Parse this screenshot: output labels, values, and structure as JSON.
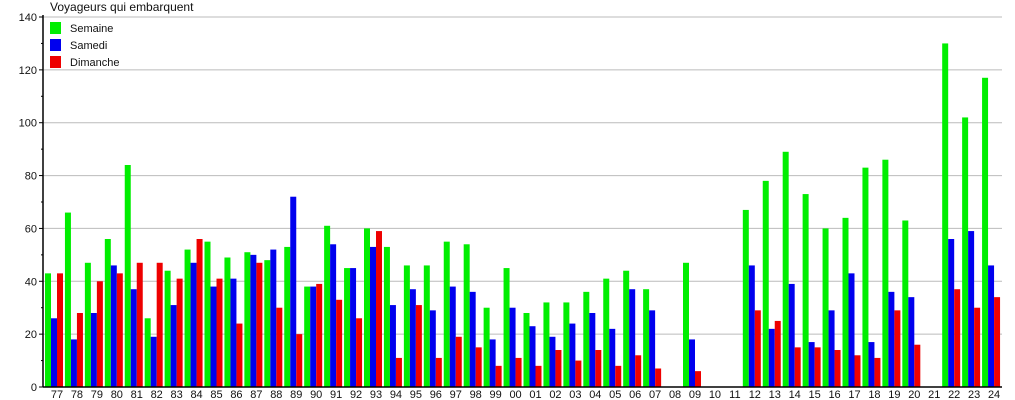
{
  "chart_data": {
    "type": "bar",
    "title": "Voyageurs qui embarquent",
    "xlabel": "",
    "ylabel": "",
    "ylim": [
      0,
      140
    ],
    "yticks": [
      0,
      20,
      40,
      60,
      80,
      100,
      120,
      140
    ],
    "grid": true,
    "legend_position": "top-left",
    "categories": [
      "77",
      "78",
      "79",
      "80",
      "81",
      "82",
      "83",
      "84",
      "85",
      "86",
      "87",
      "88",
      "89",
      "90",
      "91",
      "92",
      "93",
      "94",
      "95",
      "96",
      "97",
      "98",
      "99",
      "00",
      "01",
      "02",
      "03",
      "04",
      "05",
      "06",
      "07",
      "08",
      "09",
      "10",
      "11",
      "12",
      "13",
      "14",
      "15",
      "16",
      "17",
      "18",
      "19",
      "20",
      "21",
      "22",
      "23",
      "24"
    ],
    "series": [
      {
        "name": "Semaine",
        "color": "#00ee00",
        "values": [
          43,
          66,
          47,
          56,
          84,
          26,
          44,
          52,
          55,
          49,
          51,
          48,
          53,
          38,
          61,
          45,
          60,
          53,
          46,
          46,
          55,
          54,
          30,
          45,
          28,
          32,
          32,
          36,
          41,
          44,
          37,
          null,
          47,
          null,
          null,
          67,
          78,
          89,
          73,
          60,
          64,
          83,
          86,
          63,
          null,
          130,
          102,
          117
        ]
      },
      {
        "name": "Samedi",
        "color": "#0000ee",
        "values": [
          26,
          18,
          28,
          46,
          37,
          19,
          31,
          47,
          38,
          41,
          50,
          52,
          72,
          38,
          54,
          45,
          53,
          31,
          37,
          29,
          38,
          36,
          18,
          30,
          23,
          19,
          24,
          28,
          22,
          37,
          29,
          null,
          18,
          null,
          null,
          46,
          22,
          39,
          17,
          29,
          43,
          17,
          36,
          34,
          null,
          56,
          59,
          46
        ]
      },
      {
        "name": "Dimanche",
        "color": "#ee0000",
        "values": [
          43,
          28,
          40,
          43,
          47,
          47,
          41,
          56,
          41,
          24,
          47,
          30,
          20,
          39,
          33,
          26,
          59,
          11,
          31,
          11,
          19,
          15,
          8,
          11,
          8,
          14,
          10,
          14,
          8,
          12,
          7,
          null,
          6,
          null,
          null,
          29,
          25,
          15,
          15,
          14,
          12,
          11,
          29,
          16,
          null,
          37,
          30,
          34
        ]
      }
    ]
  }
}
